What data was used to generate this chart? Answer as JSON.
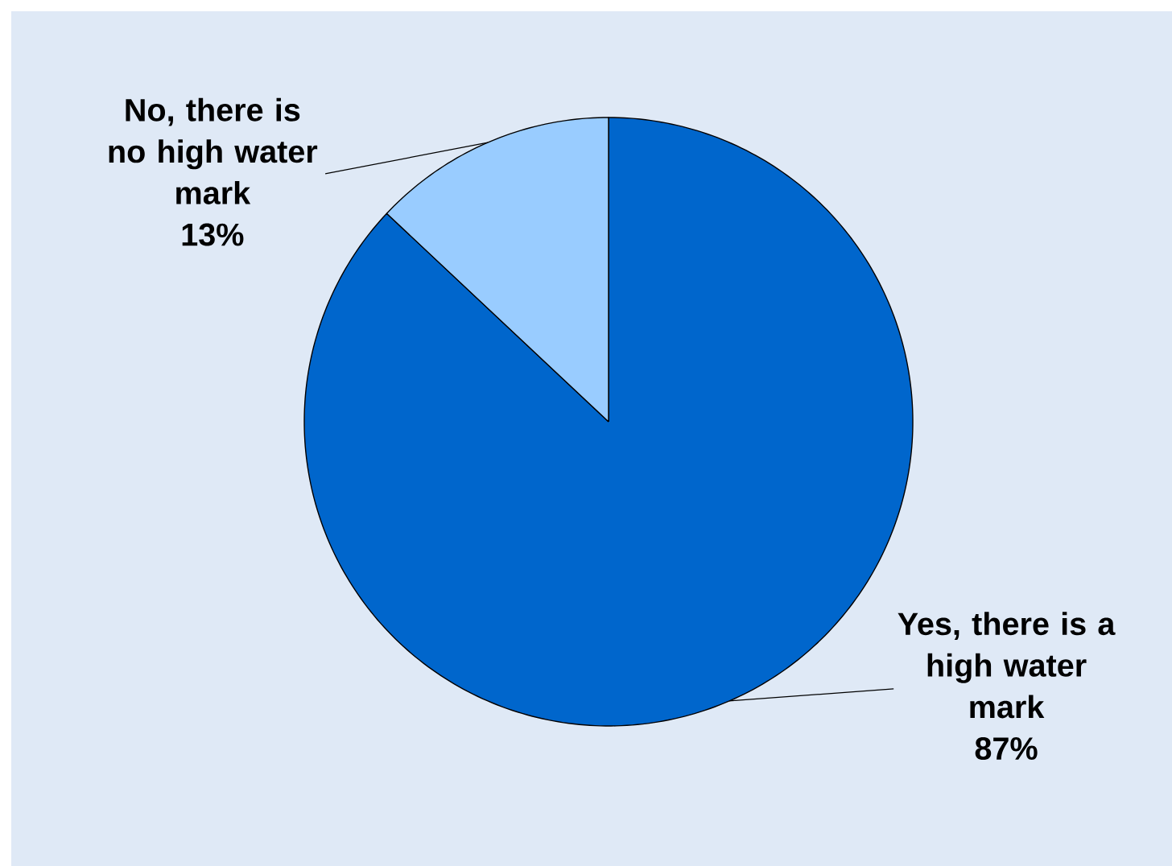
{
  "chart_data": {
    "type": "pie",
    "categories": [
      "Yes, there is a high water mark",
      "No, there is no high water mark"
    ],
    "values": [
      87,
      13
    ],
    "colors": [
      "#0066cc",
      "#99ccff"
    ],
    "value_labels": [
      "87%",
      "13%"
    ]
  }
}
